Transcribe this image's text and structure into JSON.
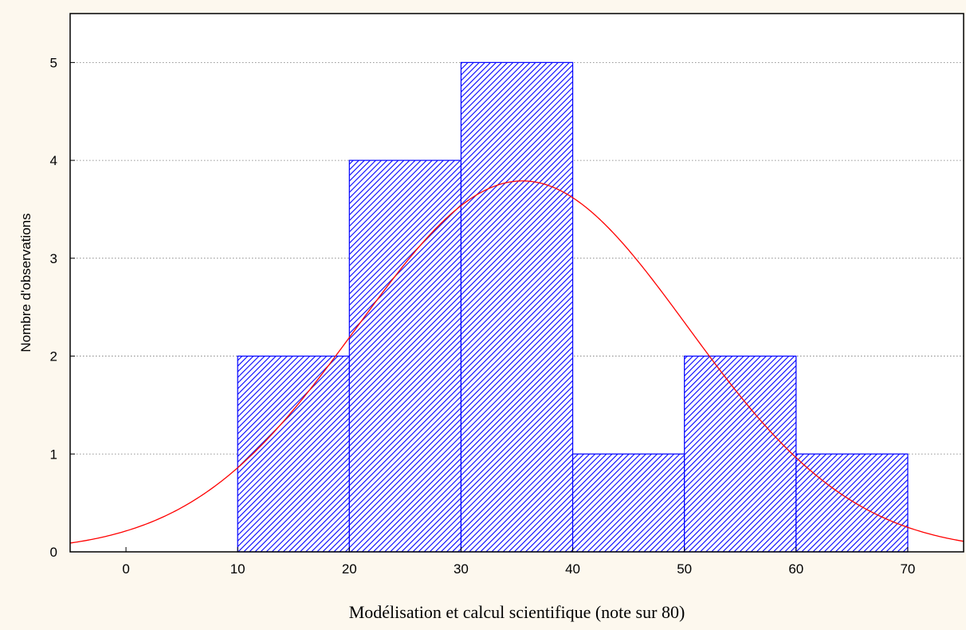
{
  "chart_data": {
    "type": "bar",
    "title": "",
    "xlabel": "Modélisation et calcul scientifique (note sur 80)",
    "ylabel": "Nombre d'observations",
    "bins": [
      {
        "x0": 10,
        "x1": 20,
        "count": 2
      },
      {
        "x0": 20,
        "x1": 30,
        "count": 4
      },
      {
        "x0": 30,
        "x1": 40,
        "count": 5
      },
      {
        "x0": 40,
        "x1": 50,
        "count": 1
      },
      {
        "x0": 50,
        "x1": 60,
        "count": 2
      },
      {
        "x0": 60,
        "x1": 70,
        "count": 1
      }
    ],
    "normal_curve": {
      "mean": 35.5,
      "sd": 14.8,
      "peak": 3.79
    },
    "xlim": [
      -5,
      75
    ],
    "ylim": [
      0,
      5.5
    ],
    "xticks": [
      0,
      10,
      20,
      30,
      40,
      50,
      60,
      70
    ],
    "yticks": [
      0,
      1,
      2,
      3,
      4,
      5
    ],
    "grid": "horizontal dotted",
    "colors": {
      "bar_edge": "#0000ff",
      "bar_hatch": "#0000ff",
      "curve": "#ff0000",
      "background": "#fdf8ee",
      "plot_background": "#ffffff"
    }
  }
}
